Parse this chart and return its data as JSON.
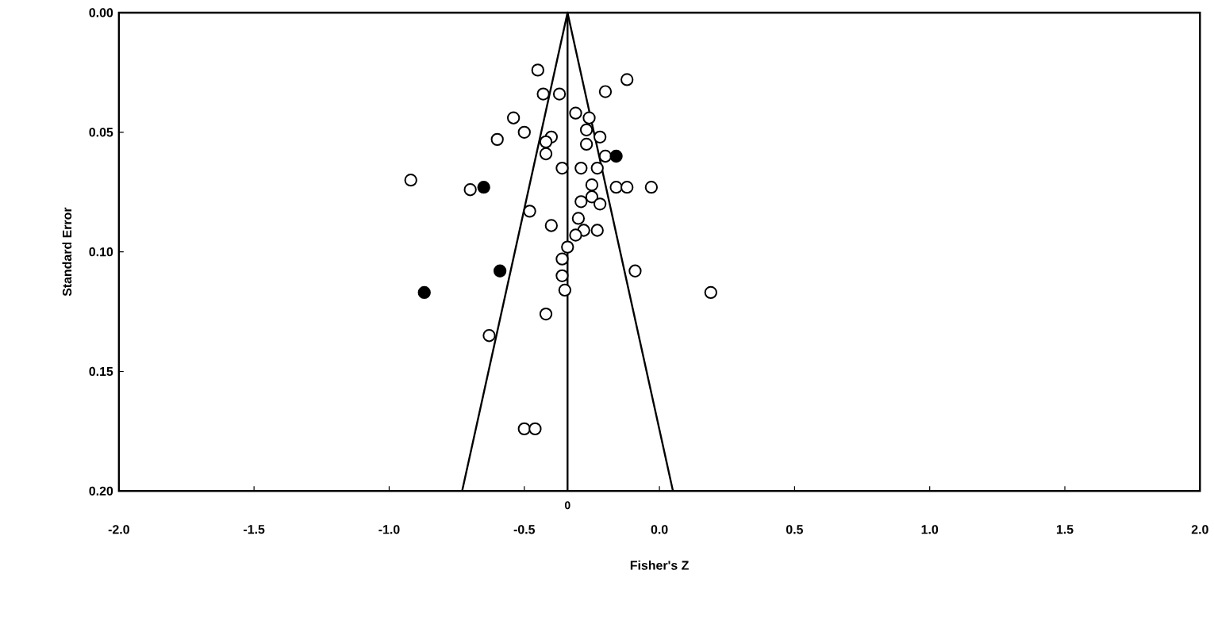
{
  "chart_data": {
    "type": "scatter",
    "xlabel": "Fisher's Z",
    "ylabel": "Standard Error",
    "xlim": [
      -2.0,
      2.0
    ],
    "ylim": [
      0.2,
      0.0
    ],
    "xticks": [
      {
        "value": -2.0,
        "label": "-2.0"
      },
      {
        "value": -1.5,
        "label": "-1.5"
      },
      {
        "value": -1.0,
        "label": "-1.0"
      },
      {
        "value": -0.5,
        "label": "-0.5"
      },
      {
        "value": 0.0,
        "label": "0.0"
      },
      {
        "value": 0.5,
        "label": "0.5"
      },
      {
        "value": 1.0,
        "label": "1.0"
      },
      {
        "value": 1.5,
        "label": "1.5"
      },
      {
        "value": 2.0,
        "label": "2.0"
      }
    ],
    "yticks": [
      {
        "value": 0.0,
        "label": "0.00"
      },
      {
        "value": 0.05,
        "label": "0.05"
      },
      {
        "value": 0.1,
        "label": "0.10"
      },
      {
        "value": 0.15,
        "label": "0.15"
      },
      {
        "value": 0.2,
        "label": "0.20"
      }
    ],
    "grid": false,
    "series": [
      {
        "type": "scatter",
        "marker": "circle",
        "color": "#ffffff",
        "x": [
          -0.45,
          -0.12,
          -0.2,
          -0.43,
          -0.37,
          -0.31,
          -0.26,
          -0.54,
          -0.5,
          -0.6,
          -0.27,
          -0.22,
          -0.4,
          -0.42,
          -0.42,
          -0.27,
          -0.2,
          -0.36,
          -0.29,
          -0.23,
          -0.92,
          -0.7,
          -0.25,
          -0.16,
          -0.12,
          -0.03,
          -0.29,
          -0.25,
          -0.22,
          -0.48,
          -0.4,
          -0.3,
          -0.28,
          -0.23,
          -0.31,
          -0.34,
          -0.36,
          -0.09,
          -0.36,
          -0.35,
          0.19,
          -0.42,
          -0.63,
          -0.5,
          -0.46
        ],
        "values": [
          0.024,
          0.028,
          0.033,
          0.034,
          0.034,
          0.042,
          0.044,
          0.044,
          0.05,
          0.053,
          0.049,
          0.052,
          0.052,
          0.054,
          0.059,
          0.055,
          0.06,
          0.065,
          0.065,
          0.065,
          0.07,
          0.074,
          0.072,
          0.073,
          0.073,
          0.073,
          0.079,
          0.077,
          0.08,
          0.083,
          0.089,
          0.086,
          0.091,
          0.091,
          0.093,
          0.098,
          0.103,
          0.108,
          0.11,
          0.116,
          0.117,
          0.126,
          0.135,
          0.174,
          0.174
        ]
      },
      {
        "type": "scatter",
        "marker": "circle",
        "color": "#000000",
        "x": [
          -0.16,
          -0.65,
          -0.59,
          -0.87
        ],
        "values": [
          0.06,
          0.073,
          0.108,
          0.117
        ]
      },
      {
        "type": "line",
        "marker": "none",
        "color": "#000000",
        "x": [
          -0.73,
          -0.34,
          0.05
        ],
        "values": [
          0.2,
          0.0,
          0.2
        ]
      }
    ],
    "ref_lines": [
      {
        "axis": "x",
        "value": -0.34,
        "color": "#000000"
      }
    ],
    "annotations": [
      "0"
    ]
  }
}
